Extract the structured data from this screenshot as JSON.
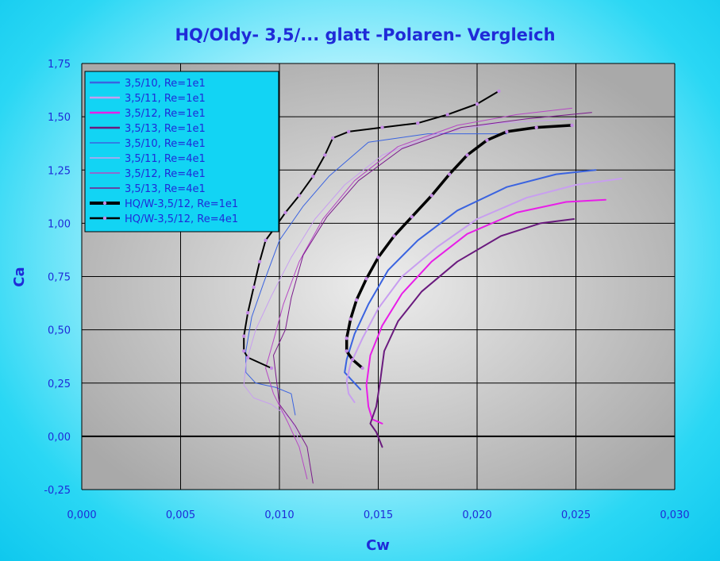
{
  "chart_data": {
    "type": "line",
    "title": "HQ/Oldy- 3,5/... glatt -Polaren- Vergleich",
    "xlabel": "Cw",
    "ylabel": "Ca",
    "xlim": [
      0,
      0.03
    ],
    "ylim": [
      -0.25,
      1.75
    ],
    "x_ticks": [
      "0,000",
      "0,005",
      "0,010",
      "0,015",
      "0,020",
      "0,025",
      "0,030"
    ],
    "y_ticks": [
      "1,75",
      "1,50",
      "1,25",
      "1,00",
      "0,75",
      "0,50",
      "0,25",
      "0,00",
      "-0,25"
    ],
    "grid": true,
    "legend_position": "top-left",
    "series": [
      {
        "name": "3,5/10, Re=1e1",
        "color": "#3a63e0",
        "width": 2,
        "marker": false,
        "x": [
          0.0141,
          0.0136,
          0.0133,
          0.0134,
          0.0138,
          0.0145,
          0.0155,
          0.017,
          0.019,
          0.0215,
          0.024,
          0.026
        ],
        "y": [
          0.22,
          0.27,
          0.3,
          0.36,
          0.48,
          0.62,
          0.78,
          0.92,
          1.06,
          1.17,
          1.23,
          1.25
        ]
      },
      {
        "name": "3,5/11, Re=1e1",
        "color": "#c89ef0",
        "width": 2,
        "marker": false,
        "x": [
          0.0138,
          0.0135,
          0.0134,
          0.0136,
          0.0142,
          0.015,
          0.0162,
          0.018,
          0.02,
          0.0225,
          0.025,
          0.0273
        ],
        "y": [
          0.16,
          0.2,
          0.26,
          0.34,
          0.46,
          0.6,
          0.75,
          0.89,
          1.02,
          1.12,
          1.18,
          1.21
        ]
      },
      {
        "name": "3,5/12, Re=1e1",
        "color": "#e81ee8",
        "width": 2,
        "marker": false,
        "x": [
          0.0152,
          0.0147,
          0.0145,
          0.0144,
          0.0146,
          0.0152,
          0.0162,
          0.0177,
          0.0195,
          0.022,
          0.0245,
          0.0265
        ],
        "y": [
          0.06,
          0.08,
          0.14,
          0.24,
          0.38,
          0.52,
          0.67,
          0.82,
          0.95,
          1.05,
          1.1,
          1.11
        ]
      },
      {
        "name": "3,5/13, Re=1e1",
        "color": "#6a1a7e",
        "width": 2,
        "marker": false,
        "x": [
          0.0152,
          0.0149,
          0.0146,
          0.0149,
          0.0151,
          0.0153,
          0.016,
          0.0172,
          0.019,
          0.0212,
          0.0232,
          0.0249
        ],
        "y": [
          -0.05,
          0.02,
          0.06,
          0.14,
          0.26,
          0.4,
          0.54,
          0.68,
          0.82,
          0.94,
          1.0,
          1.02
        ]
      },
      {
        "name": "3,5/10, Re=4e1",
        "color": "#3a63e0",
        "width": 1,
        "marker": false,
        "x": [
          0.0108,
          0.0106,
          0.0098,
          0.0088,
          0.0083,
          0.0083,
          0.0086,
          0.0092,
          0.01,
          0.0112,
          0.0125,
          0.0145,
          0.0175,
          0.02,
          0.0215
        ],
        "y": [
          0.1,
          0.2,
          0.23,
          0.25,
          0.3,
          0.4,
          0.56,
          0.72,
          0.92,
          1.08,
          1.22,
          1.38,
          1.42,
          1.42,
          1.42
        ]
      },
      {
        "name": "3,5/11, Re=4e1",
        "color": "#c89ef0",
        "width": 1,
        "marker": false,
        "x": [
          0.0111,
          0.0106,
          0.0096,
          0.0087,
          0.0082,
          0.0083,
          0.0088,
          0.0096,
          0.0106,
          0.0118,
          0.0133,
          0.0152,
          0.018,
          0.021,
          0.025
        ],
        "y": [
          -0.05,
          0.08,
          0.15,
          0.18,
          0.24,
          0.34,
          0.5,
          0.66,
          0.84,
          1.02,
          1.18,
          1.32,
          1.42,
          1.47,
          1.49
        ]
      },
      {
        "name": "3,5/12, Re=4e1",
        "color": "#b648c4",
        "width": 1,
        "marker": false,
        "x": [
          0.0114,
          0.011,
          0.0104,
          0.0097,
          0.0093,
          0.0097,
          0.0102,
          0.011,
          0.0122,
          0.0138,
          0.016,
          0.019,
          0.022,
          0.0248
        ],
        "y": [
          -0.2,
          -0.05,
          0.07,
          0.2,
          0.32,
          0.45,
          0.62,
          0.82,
          1.02,
          1.2,
          1.36,
          1.46,
          1.51,
          1.54
        ]
      },
      {
        "name": "3,5/13, Re=4e1",
        "color": "#7b1a8c",
        "width": 1,
        "marker": false,
        "x": [
          0.0117,
          0.0114,
          0.0108,
          0.01,
          0.0097,
          0.0103,
          0.0106,
          0.0112,
          0.0124,
          0.014,
          0.0162,
          0.0192,
          0.0225,
          0.0258
        ],
        "y": [
          -0.22,
          -0.05,
          0.05,
          0.15,
          0.38,
          0.5,
          0.65,
          0.85,
          1.03,
          1.2,
          1.35,
          1.45,
          1.49,
          1.52
        ]
      },
      {
        "name": "HQ/W-3,5/12, Re=1e1",
        "color": "#000000",
        "width": 3.5,
        "marker": true,
        "marker_color": "#c48ae6",
        "x": [
          0.0142,
          0.0137,
          0.0134,
          0.0134,
          0.0136,
          0.0139,
          0.0144,
          0.015,
          0.0158,
          0.0167,
          0.0177,
          0.0186,
          0.0195,
          0.0205,
          0.0215,
          0.023,
          0.0248
        ],
        "y": [
          0.32,
          0.36,
          0.4,
          0.46,
          0.55,
          0.64,
          0.74,
          0.84,
          0.94,
          1.03,
          1.13,
          1.23,
          1.32,
          1.39,
          1.43,
          1.45,
          1.46
        ]
      },
      {
        "name": "HQ/W-3,5/12, Re=4e1",
        "color": "#000000",
        "width": 2,
        "marker": true,
        "marker_color": "#c48ae6",
        "x": [
          0.0096,
          0.0084,
          0.0082,
          0.0082,
          0.0084,
          0.0087,
          0.009,
          0.0093,
          0.0097,
          0.0103,
          0.011,
          0.0117,
          0.0123,
          0.0127,
          0.0135,
          0.0152,
          0.017,
          0.0185,
          0.02,
          0.0211
        ],
        "y": [
          0.32,
          0.37,
          0.4,
          0.47,
          0.58,
          0.7,
          0.82,
          0.92,
          0.97,
          1.05,
          1.13,
          1.22,
          1.32,
          1.4,
          1.43,
          1.45,
          1.47,
          1.51,
          1.56,
          1.62
        ]
      }
    ]
  }
}
